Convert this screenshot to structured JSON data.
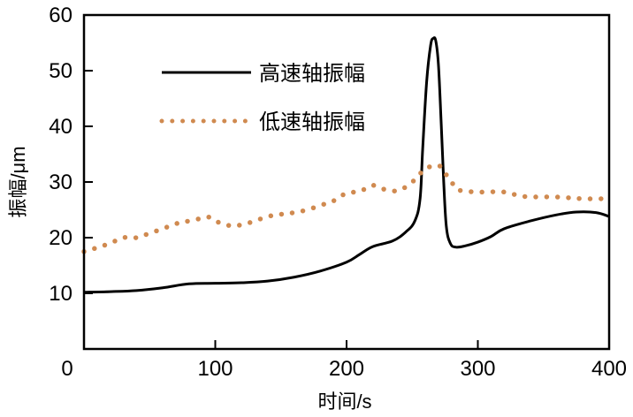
{
  "chart_data": {
    "type": "line",
    "xlabel": "时间/s",
    "ylabel": "振幅/μm",
    "xlim": [
      0,
      400
    ],
    "ylim": [
      0,
      60
    ],
    "xticks": [
      0,
      100,
      200,
      300,
      400
    ],
    "yticks": [
      10,
      20,
      30,
      40,
      50,
      60
    ],
    "xtick_labels": [
      "0",
      "100",
      "200",
      "300",
      "400"
    ],
    "ytick_labels": [
      "10",
      "20",
      "30",
      "40",
      "50",
      "60"
    ],
    "grid": false,
    "legend_placement": "top-left",
    "series": [
      {
        "name": "高速轴振幅",
        "style": "solid",
        "color": "#000000",
        "x": [
          0,
          20,
          40,
          60,
          80,
          100,
          120,
          140,
          160,
          180,
          200,
          210,
          220,
          235,
          245,
          252,
          256,
          258,
          261,
          264,
          266,
          268,
          270,
          272,
          274,
          276,
          279,
          283,
          290,
          300,
          310,
          320,
          340,
          360,
          375,
          390,
          400
        ],
        "y": [
          10.2,
          10.3,
          10.5,
          11.0,
          11.7,
          11.8,
          11.9,
          12.2,
          12.9,
          14.0,
          15.6,
          17.0,
          18.4,
          19.4,
          21.0,
          23.0,
          27.0,
          36.0,
          48.0,
          54.5,
          55.8,
          55.3,
          51.0,
          41.0,
          30.0,
          22.0,
          19.0,
          18.3,
          18.5,
          19.2,
          20.2,
          21.6,
          23.0,
          24.1,
          24.6,
          24.5,
          23.8
        ]
      },
      {
        "name": "低速轴振幅",
        "style": "dotted",
        "color": "#d08a50",
        "x": [
          0,
          10,
          20,
          30,
          40,
          50,
          60,
          70,
          80,
          90,
          95,
          100,
          110,
          120,
          130,
          140,
          150,
          160,
          170,
          180,
          190,
          200,
          210,
          220,
          230,
          240,
          250,
          256,
          262,
          270,
          275,
          280,
          285,
          300,
          320,
          335,
          360,
          380,
          400
        ],
        "y": [
          17.5,
          18.2,
          19.0,
          20.0,
          20.0,
          20.8,
          21.6,
          22.5,
          23.0,
          23.5,
          23.7,
          23.0,
          22.2,
          22.3,
          23.0,
          23.8,
          24.2,
          24.5,
          25.0,
          25.8,
          26.6,
          28.0,
          28.3,
          29.4,
          28.6,
          28.5,
          30.0,
          31.5,
          32.6,
          33.0,
          31.6,
          30.0,
          28.6,
          28.2,
          28.2,
          27.4,
          27.3,
          27.0,
          27.0
        ]
      }
    ]
  }
}
